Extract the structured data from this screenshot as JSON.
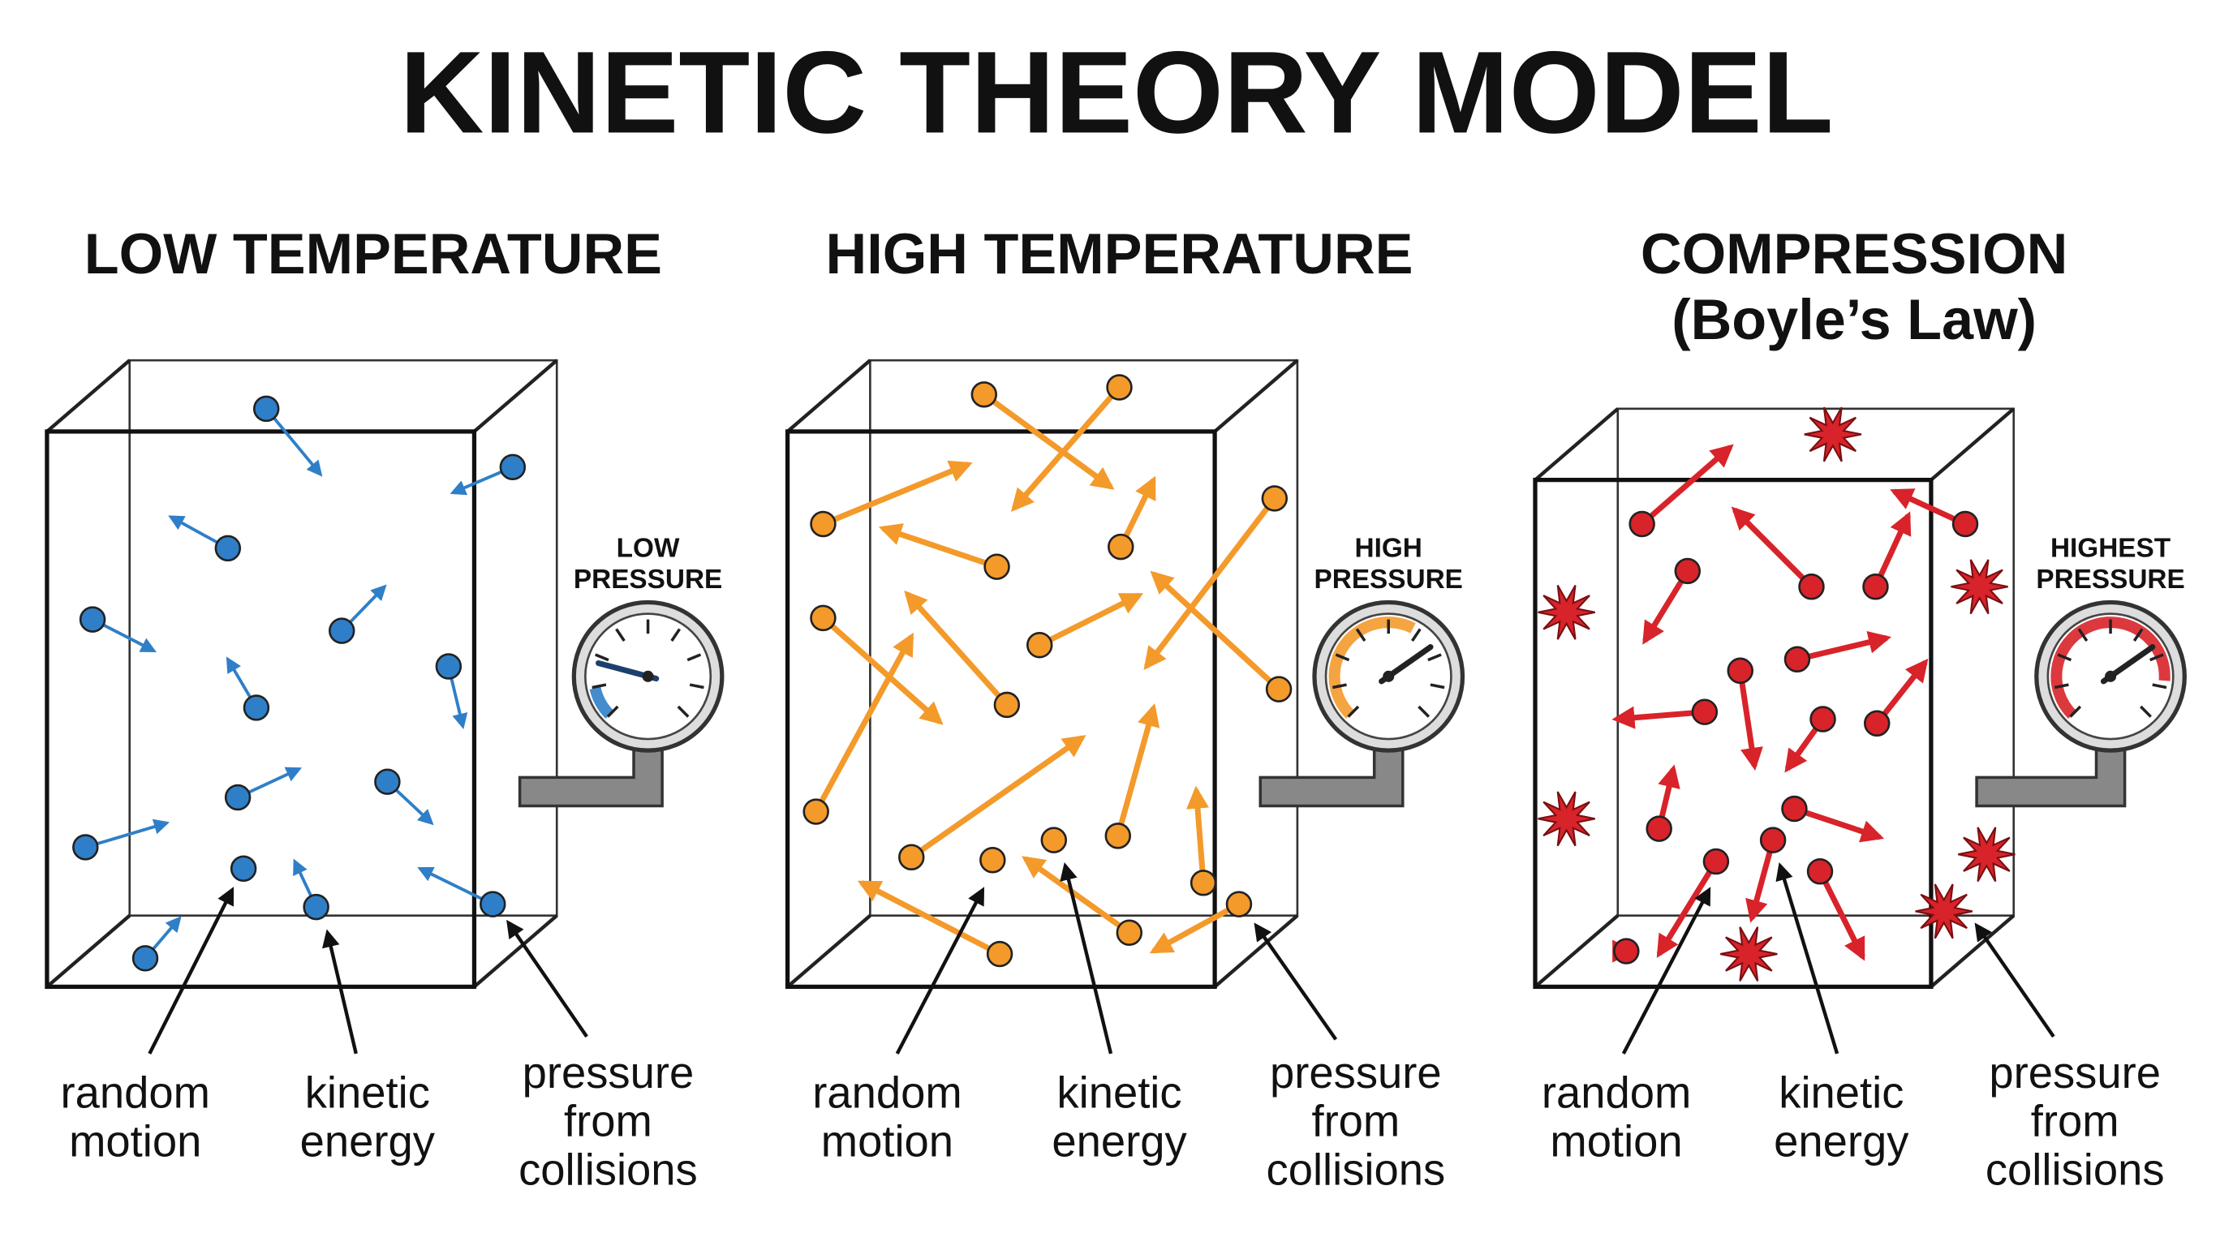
{
  "title": "KINETIC THEORY MODEL",
  "panels": [
    {
      "title": [
        "LOW TEMPERATURE"
      ],
      "gauge": [
        "LOW",
        "PRESSURE"
      ],
      "labels": [
        [
          "random",
          "motion"
        ],
        [
          "kinetic",
          "energy"
        ],
        [
          "pressure",
          "from",
          "collisions"
        ]
      ]
    },
    {
      "title": [
        "HIGH TEMPERATURE"
      ],
      "gauge": [
        "HIGH",
        "PRESSURE"
      ],
      "labels": [
        [
          "random",
          "motion"
        ],
        [
          "kinetic",
          "energy"
        ],
        [
          "pressure",
          "from",
          "collisions"
        ]
      ]
    },
    {
      "title": [
        "COMPRESSION",
        "(Boyle’s Law)"
      ],
      "gauge": [
        "HIGHEST",
        "PRESSURE"
      ],
      "labels": [
        [
          "random",
          "motion"
        ],
        [
          "kinetic",
          "energy"
        ],
        [
          "pressure",
          "from",
          "collisions"
        ]
      ]
    }
  ]
}
